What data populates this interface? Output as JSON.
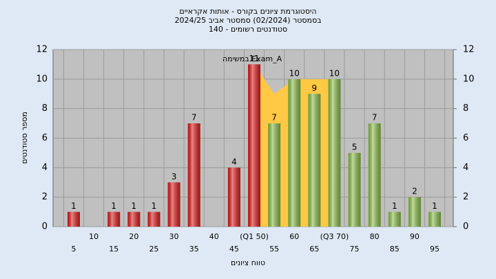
{
  "chart_data": {
    "type": "bar",
    "title": [
      "היסטוגרמת ציונים בקורס - אותות אקראיים",
      "בסמסטר (02/2024) סמסטר אביב 2024/25",
      "סטודנטים רשומים - 140"
    ],
    "annotation": "במשימה Exam_A",
    "x_label": "טווח ציונים",
    "y_label": "מספר סטודנטים",
    "categories": [
      "5",
      "10",
      "15",
      "20",
      "25",
      "30",
      "35",
      "40",
      "45",
      "(Q1 50)",
      "55",
      "60",
      "65",
      "(Q3 70)",
      "75",
      "80",
      "85",
      "90",
      "95"
    ],
    "values": [
      1,
      0,
      1,
      1,
      1,
      3,
      7,
      0,
      4,
      11,
      7,
      10,
      9,
      10,
      5,
      7,
      1,
      2,
      1
    ],
    "colors": [
      "#e01c1c",
      "#e01c1c",
      "#e01c1c",
      "#e01c1c",
      "#e01c1c",
      "#e01c1c",
      "#e01c1c",
      "#e01c1c",
      "#e01c1c",
      "#e01c1c",
      "#8cc04a",
      "#8cc04a",
      "#8cc04a",
      "#8cc04a",
      "#8cc04a",
      "#8cc04a",
      "#8cc04a",
      "#8cc04a",
      "#8cc04a"
    ],
    "band": {
      "color": "#ffc845",
      "values": [
        null,
        null,
        null,
        null,
        null,
        null,
        null,
        null,
        null,
        11,
        9,
        10,
        10,
        10,
        null,
        null,
        null,
        null,
        null
      ]
    },
    "ylim": [
      0,
      12
    ],
    "yticks": [
      0,
      2,
      4,
      6,
      8,
      10,
      12
    ],
    "y2lim": [
      0,
      12
    ],
    "y2ticks": [
      0,
      2,
      4,
      6,
      8,
      10,
      12
    ],
    "grid": true,
    "plot_color": "#c0c0c0"
  }
}
